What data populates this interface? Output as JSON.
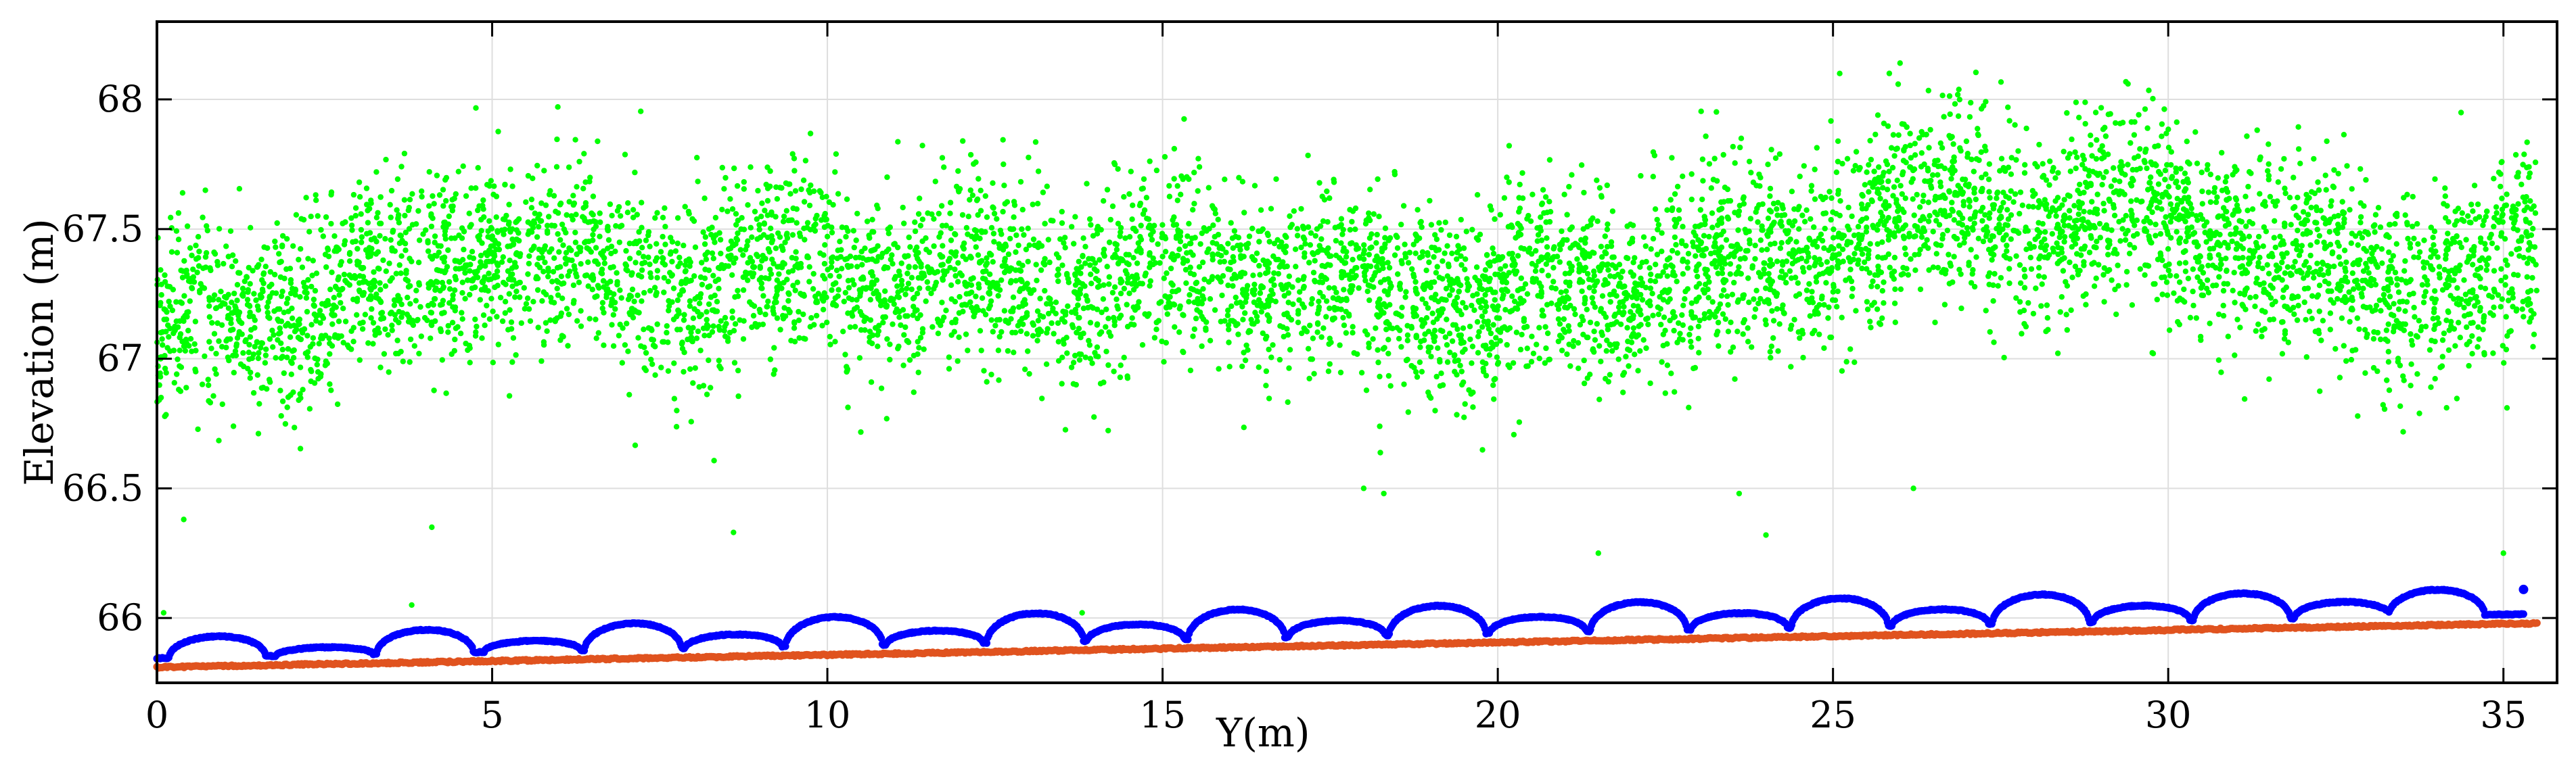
{
  "chart_data": {
    "type": "scatter",
    "title": "",
    "xlabel": "Y(m)",
    "ylabel": "Elevation (m)",
    "xlim": [
      0,
      35.8
    ],
    "ylim": [
      65.75,
      68.3
    ],
    "xticks": [
      "0",
      "5",
      "10",
      "15",
      "20",
      "25",
      "30",
      "35"
    ],
    "xtick_values": [
      0,
      5,
      10,
      15,
      20,
      25,
      30,
      35
    ],
    "yticks": [
      "66",
      "66.5",
      "67",
      "67.5",
      "68"
    ],
    "ytick_values": [
      66,
      66.5,
      67,
      67.5,
      68
    ],
    "grid": true,
    "legend": "none",
    "series": [
      {
        "color": "#00ff00",
        "marker_radius_hint": "small",
        "x_range": [
          0,
          35.5
        ],
        "density_x": [
          0,
          1,
          2,
          3,
          4,
          5,
          6,
          7,
          8,
          9,
          10,
          11,
          12,
          13,
          14,
          15,
          16,
          17,
          18,
          19,
          20,
          21,
          22,
          23,
          24,
          25,
          26,
          27,
          28,
          29,
          30,
          31,
          32,
          33,
          34,
          35
        ],
        "mean_elevation": [
          67.1,
          67.15,
          67.2,
          67.3,
          67.3,
          67.45,
          67.35,
          67.3,
          67.3,
          67.3,
          67.35,
          67.3,
          67.3,
          67.3,
          67.3,
          67.3,
          67.35,
          67.3,
          67.25,
          67.25,
          67.25,
          67.25,
          67.3,
          67.35,
          67.35,
          67.45,
          67.55,
          67.6,
          67.55,
          67.55,
          67.55,
          67.45,
          67.35,
          67.3,
          67.3,
          67.35
        ],
        "spread": 0.3,
        "outliers": [
          [
            0.1,
            66.02
          ],
          [
            0.4,
            66.38
          ],
          [
            3.8,
            66.05
          ],
          [
            4.1,
            66.35
          ],
          [
            8.6,
            66.33
          ],
          [
            13.8,
            66.02
          ],
          [
            18.0,
            66.5
          ],
          [
            18.3,
            66.48
          ],
          [
            21.5,
            66.25
          ],
          [
            23.6,
            66.48
          ],
          [
            24.0,
            66.32
          ],
          [
            26.2,
            66.5
          ],
          [
            35.0,
            66.25
          ],
          [
            26.0,
            68.14
          ],
          [
            25.1,
            68.1
          ],
          [
            29.4,
            68.06
          ]
        ]
      },
      {
        "color": "#0000ff",
        "baseline_start": 65.83,
        "baseline_end": 66.0,
        "arch_centers": [
          0.9,
          2.5,
          4.0,
          5.6,
          7.1,
          8.6,
          10.1,
          11.6,
          13.1,
          14.6,
          16.1,
          17.6,
          19.1,
          20.6,
          22.1,
          23.6,
          25.1,
          26.6,
          28.1,
          29.6,
          31.1,
          32.6,
          34.0
        ],
        "arch_heights": [
          0.08,
          0.03,
          0.09,
          0.04,
          0.1,
          0.05,
          0.11,
          0.05,
          0.11,
          0.06,
          0.11,
          0.06,
          0.11,
          0.06,
          0.11,
          0.06,
          0.11,
          0.06,
          0.11,
          0.06,
          0.1,
          0.06,
          0.1
        ],
        "end_point": [
          35.3,
          66.11
        ]
      },
      {
        "color": "#e0531f",
        "x_range": [
          0,
          35.5
        ],
        "y_start": 65.81,
        "y_end": 65.98
      }
    ]
  }
}
